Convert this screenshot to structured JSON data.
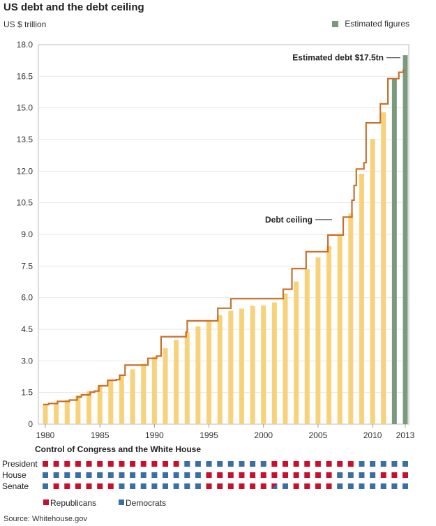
{
  "chart_data": {
    "type": "bar",
    "title": "US debt and the debt ceiling",
    "ylabel": "US $ trillion",
    "legend": {
      "label": "Estimated figures",
      "placement": "top-right",
      "color": "#7a9a7c"
    },
    "bar_color": "#f7d27a",
    "ceiling_color": "#c8702a",
    "ylim": [
      0,
      18
    ],
    "yticks": [
      0,
      1.5,
      3.0,
      4.5,
      6.0,
      7.5,
      9.0,
      10.5,
      12.0,
      13.5,
      15.0,
      16.5,
      18.0
    ],
    "ytick_labels": [
      "0",
      "1.5",
      "3.0",
      "4.5",
      "6.0",
      "7.5",
      "9.0",
      "10.5",
      "12.0",
      "13.5",
      "15.0",
      "16.5",
      "18.0"
    ],
    "xticks": [
      1980,
      1985,
      1990,
      1995,
      2000,
      2005,
      2010,
      2013
    ],
    "years": [
      1980,
      1981,
      1982,
      1983,
      1984,
      1985,
      1986,
      1987,
      1988,
      1989,
      1990,
      1991,
      1992,
      1993,
      1994,
      1995,
      1996,
      1997,
      1998,
      1999,
      2000,
      2001,
      2002,
      2003,
      2004,
      2005,
      2006,
      2007,
      2008,
      2009,
      2010,
      2011,
      2012,
      2013
    ],
    "debt": [
      0.91,
      1.0,
      1.14,
      1.37,
      1.56,
      1.82,
      2.12,
      2.35,
      2.6,
      2.86,
      3.21,
      3.6,
      4.0,
      4.35,
      4.64,
      4.92,
      5.18,
      5.37,
      5.48,
      5.61,
      5.63,
      5.77,
      6.2,
      6.76,
      7.35,
      7.91,
      8.45,
      8.95,
      9.99,
      11.88,
      13.53,
      14.79,
      16.4,
      17.5
    ],
    "estimated": [
      false,
      false,
      false,
      false,
      false,
      false,
      false,
      false,
      false,
      false,
      false,
      false,
      false,
      false,
      false,
      false,
      false,
      false,
      false,
      false,
      false,
      false,
      false,
      false,
      false,
      false,
      false,
      false,
      false,
      false,
      false,
      false,
      true,
      true
    ],
    "ceiling_steps": [
      [
        1980,
        0.93
      ],
      [
        1980.5,
        0.98
      ],
      [
        1981.3,
        1.08
      ],
      [
        1982.4,
        1.14
      ],
      [
        1983.1,
        1.29
      ],
      [
        1983.5,
        1.39
      ],
      [
        1984.3,
        1.52
      ],
      [
        1984.7,
        1.57
      ],
      [
        1985.1,
        1.82
      ],
      [
        1985.9,
        2.08
      ],
      [
        1986.7,
        2.11
      ],
      [
        1987.0,
        2.32
      ],
      [
        1987.5,
        2.8
      ],
      [
        1989.6,
        3.12
      ],
      [
        1990.4,
        3.23
      ],
      [
        1990.8,
        4.15
      ],
      [
        1993.1,
        4.37
      ],
      [
        1993.2,
        4.9
      ],
      [
        1996.0,
        5.5
      ],
      [
        1997.2,
        5.95
      ],
      [
        2002.0,
        6.4
      ],
      [
        2002.8,
        7.38
      ],
      [
        2004.1,
        8.18
      ],
      [
        2006.1,
        8.97
      ],
      [
        2007.5,
        9.82
      ],
      [
        2008.3,
        10.62
      ],
      [
        2008.5,
        11.32
      ],
      [
        2008.7,
        12.1
      ],
      [
        2009.4,
        12.4
      ],
      [
        2009.6,
        14.29
      ],
      [
        2010.9,
        15.19
      ],
      [
        2011.6,
        16.39
      ],
      [
        2012.6,
        16.69
      ],
      [
        2013.0,
        16.79
      ]
    ],
    "annotations": [
      {
        "label": "Estimated debt $17.5tn"
      },
      {
        "label": "Debt ceiling"
      }
    ]
  },
  "control": {
    "title": "Control of Congress and the White House",
    "rows": [
      {
        "label": "President",
        "parties": [
          "R",
          "R",
          "R",
          "R",
          "R",
          "R",
          "R",
          "R",
          "R",
          "R",
          "R",
          "R",
          "R",
          "D",
          "D",
          "D",
          "D",
          "D",
          "D",
          "D",
          "D",
          "R",
          "R",
          "R",
          "R",
          "R",
          "R",
          "R",
          "R",
          "D",
          "D",
          "D",
          "D",
          "D"
        ]
      },
      {
        "label": "House",
        "parties": [
          "D",
          "D",
          "D",
          "D",
          "D",
          "D",
          "D",
          "D",
          "D",
          "D",
          "D",
          "D",
          "D",
          "D",
          "D",
          "R",
          "R",
          "R",
          "R",
          "R",
          "R",
          "R",
          "R",
          "R",
          "R",
          "R",
          "R",
          "D",
          "D",
          "D",
          "D",
          "R",
          "R",
          "R"
        ]
      },
      {
        "label": "Senate",
        "parties": [
          "D",
          "R",
          "R",
          "R",
          "R",
          "R",
          "R",
          "D",
          "D",
          "D",
          "D",
          "D",
          "D",
          "D",
          "D",
          "R",
          "R",
          "R",
          "R",
          "R",
          "R",
          "M",
          "D",
          "R",
          "R",
          "R",
          "R",
          "D",
          "D",
          "D",
          "D",
          "D",
          "D",
          "D"
        ]
      }
    ],
    "legend": [
      {
        "label": "Republicans",
        "color": "#c8102e"
      },
      {
        "label": "Democrats",
        "color": "#3a6ea5"
      }
    ]
  },
  "source": "Source: Whitehouse.gov"
}
